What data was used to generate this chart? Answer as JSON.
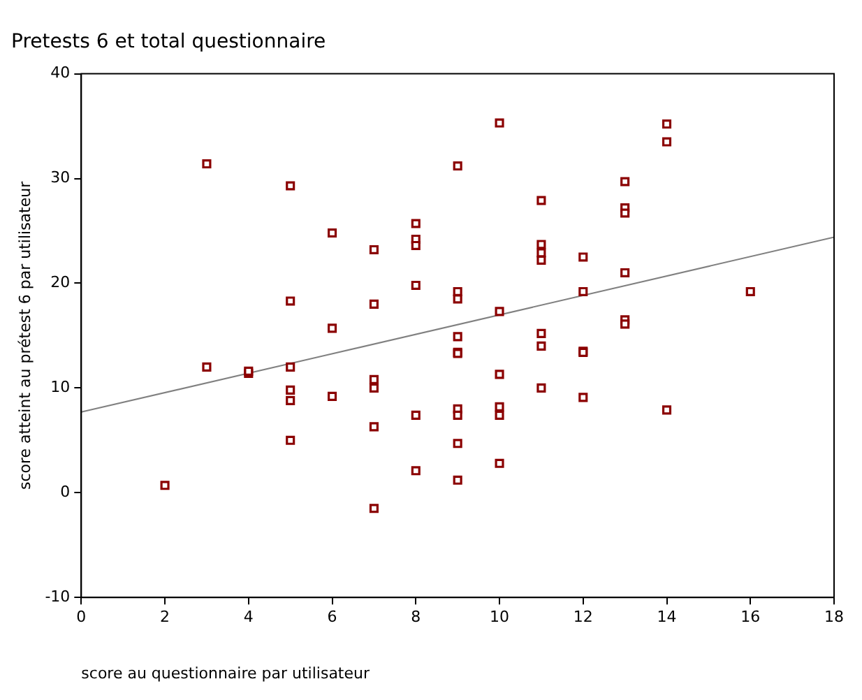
{
  "chart_data": {
    "type": "scatter",
    "title": "Pretests 6 et total questionnaire",
    "xlabel": "score au questionnaire par utilisateur",
    "ylabel": "score atteint au prétest 6 par utilisateur",
    "xlim": [
      0,
      18
    ],
    "xticks": [
      0,
      2,
      4,
      6,
      8,
      10,
      12,
      14,
      16,
      18
    ],
    "ylim": [
      -10,
      40
    ],
    "yticks": [
      -10,
      0,
      10,
      20,
      30,
      40
    ],
    "grid": false,
    "legend": false,
    "marker": "square",
    "series": [
      {
        "type": "scatter",
        "color": "#8b0000",
        "x": [
          2,
          3,
          3,
          4,
          4,
          5,
          5,
          5,
          5,
          5,
          5,
          6,
          6,
          6,
          7,
          7,
          7,
          7,
          7,
          7,
          8,
          8,
          8,
          8,
          8,
          8,
          9,
          9,
          9,
          9,
          9,
          9,
          9,
          9,
          9,
          9,
          10,
          10,
          10,
          10,
          10,
          10,
          11,
          11,
          11,
          11,
          11,
          11,
          11,
          12,
          12,
          12,
          12,
          12,
          13,
          13,
          13,
          13,
          13,
          13,
          14,
          14,
          14,
          16
        ],
        "values": [
          0.7,
          31.4,
          12.0,
          11.4,
          11.6,
          29.3,
          18.3,
          12.0,
          9.8,
          8.8,
          5.0,
          24.8,
          15.7,
          9.2,
          23.2,
          18.0,
          10.8,
          10.0,
          6.3,
          -1.5,
          25.7,
          24.2,
          23.6,
          19.8,
          7.4,
          2.1,
          31.2,
          19.2,
          18.5,
          14.9,
          13.4,
          13.3,
          8.0,
          7.4,
          4.7,
          1.2,
          35.3,
          17.3,
          11.3,
          8.2,
          7.4,
          2.8,
          27.9,
          23.7,
          22.9,
          22.2,
          15.2,
          14.0,
          10.0,
          22.5,
          19.2,
          13.5,
          13.4,
          9.1,
          29.7,
          27.2,
          26.7,
          21.0,
          16.5,
          16.1,
          35.2,
          33.5,
          7.9,
          19.2
        ]
      },
      {
        "type": "line",
        "color": "#808080",
        "x": [
          0,
          18
        ],
        "values": [
          7.7,
          24.4
        ],
        "marker": "none"
      }
    ]
  }
}
